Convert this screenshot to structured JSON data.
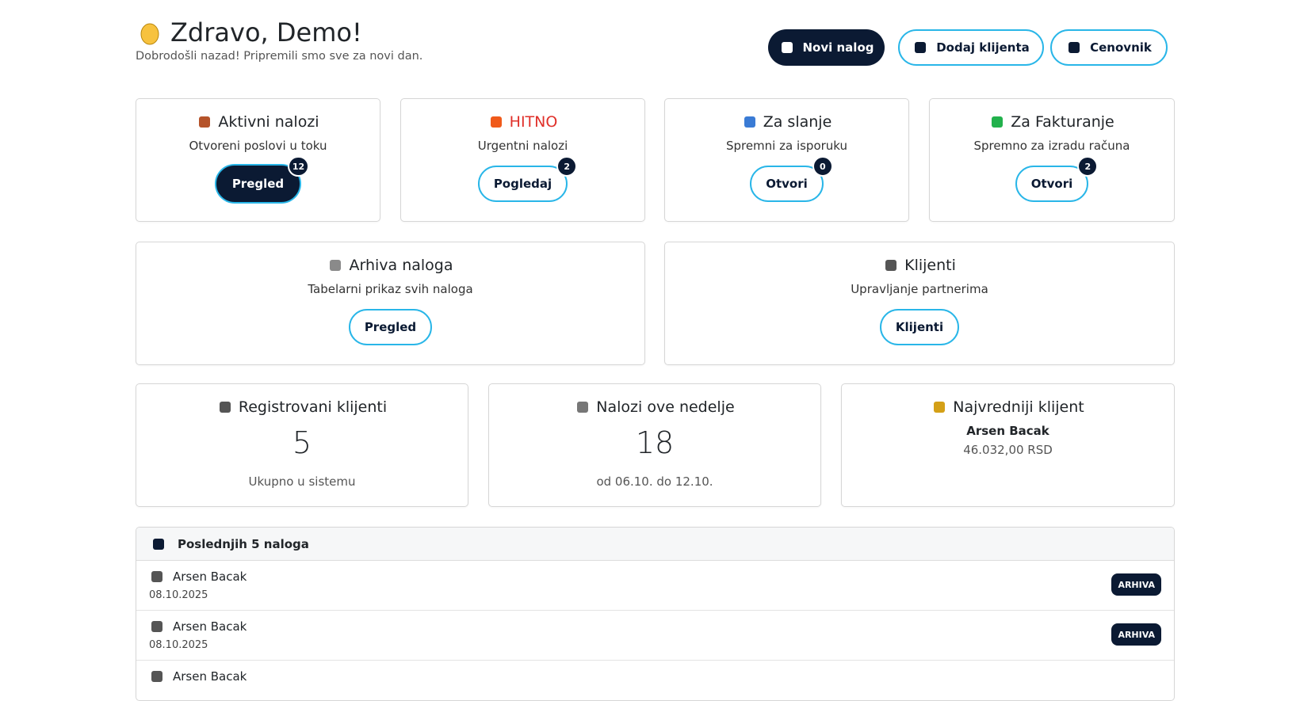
{
  "header": {
    "title": "Zdravo, Demo!",
    "subtitle": "Dobrodošli nazad! Pripremili smo sve za novi dan."
  },
  "actions": [
    "Novi nalog",
    "Dodaj klijenta",
    "Cenovnik"
  ],
  "cards": [
    {
      "title": "Aktivni nalozi",
      "subtitle": "Otvoreni poslovi u toku",
      "button": "Pregled",
      "badge": 12
    },
    {
      "title": "HITNO",
      "subtitle": "Urgentni nalozi",
      "button": "Pogledaj",
      "badge": 2
    },
    {
      "title": "Za slanje",
      "subtitle": "Spremni za isporuku",
      "button": "Otvori",
      "badge": 0
    },
    {
      "title": "Za Fakturanje",
      "subtitle": "Spremno za izradu računa",
      "button": "Otvori",
      "badge": 2
    },
    {
      "title": "Arhiva naloga",
      "subtitle": "Tabelarni prikaz svih naloga",
      "button": "Pregled"
    },
    {
      "title": "Klijenti",
      "subtitle": "Upravljanje partnerima",
      "button": "Klijenti"
    }
  ],
  "stats": [
    {
      "title": "Registrovani klijenti",
      "value": 5,
      "footer": "Ukupno u sistemu"
    },
    {
      "title": "Nalozi ove nedelje",
      "value": 18,
      "footer": "od 06.10. do 12.10."
    },
    {
      "title": "Najvredniji klijent",
      "name": "Arsen Bacak",
      "amount": "46.032,00 RSD"
    }
  ],
  "recent": {
    "title": "Poslednjih 5 naloga",
    "items": [
      {
        "name": "Arsen Bacak",
        "date": "08.10.2025",
        "status": "ARHIVA"
      },
      {
        "name": "Arsen Bacak",
        "date": "08.10.2025",
        "status": "ARHIVA"
      },
      {
        "name": "Arsen Bacak"
      }
    ]
  }
}
